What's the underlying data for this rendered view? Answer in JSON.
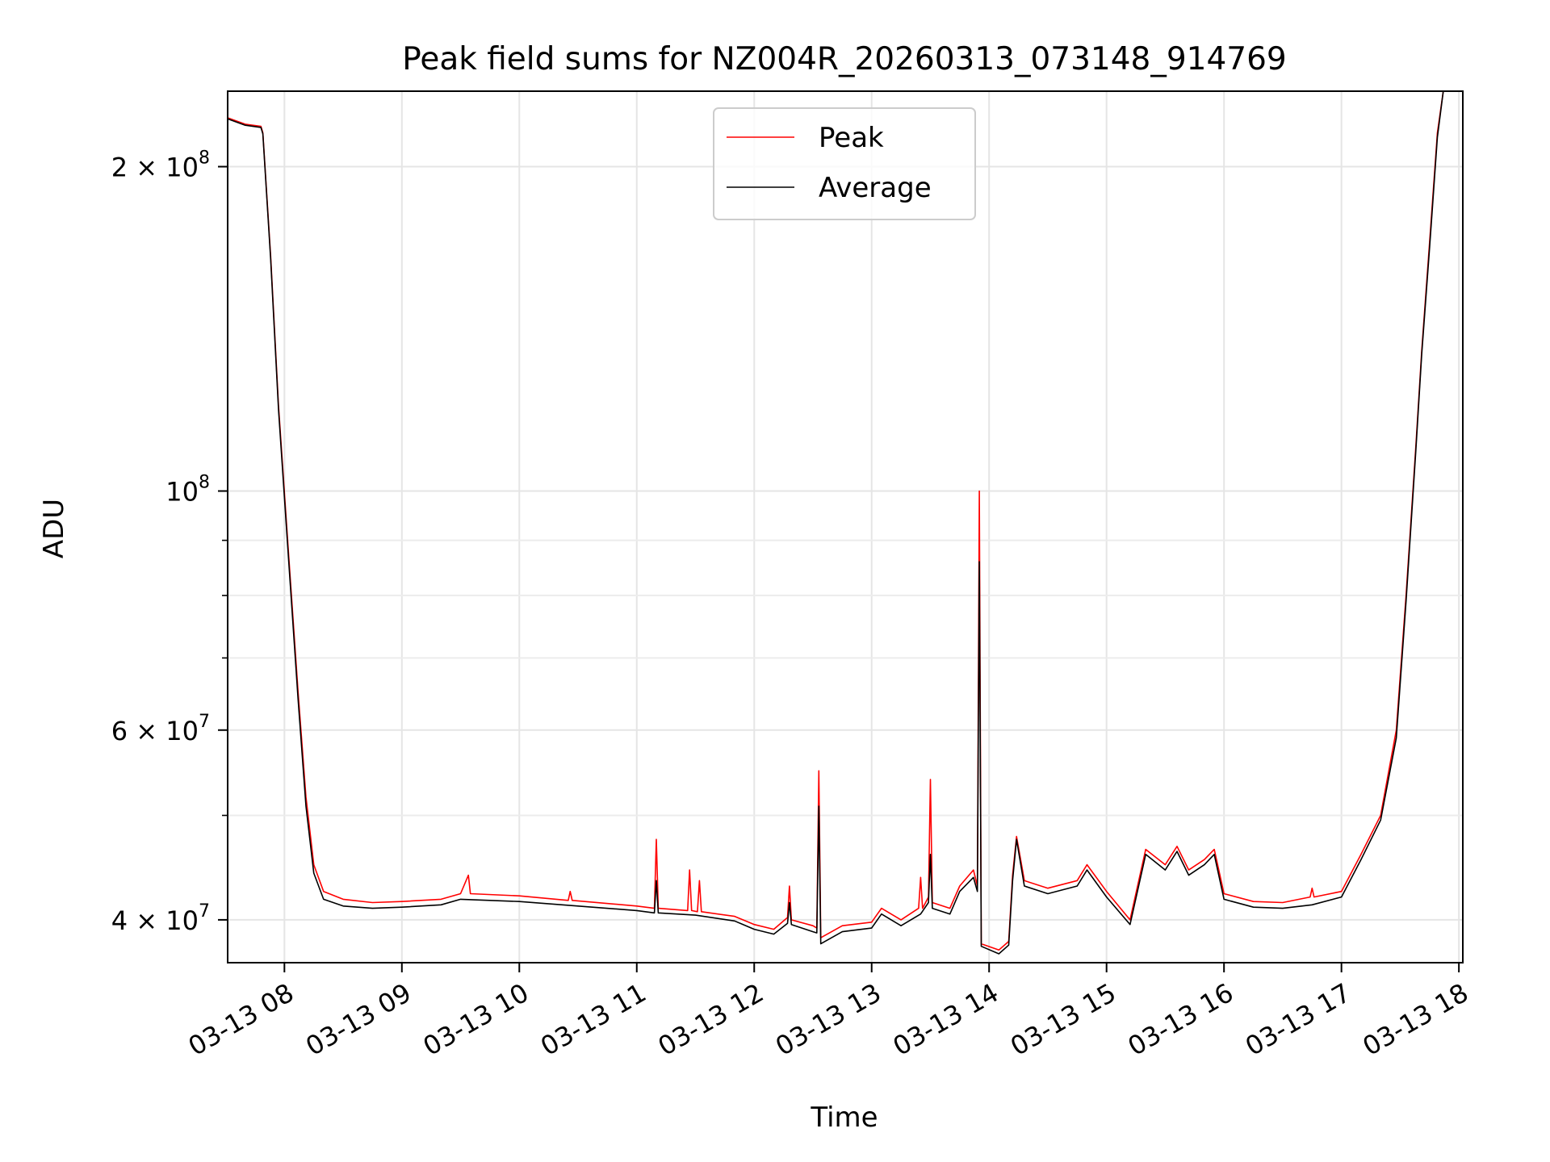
{
  "chart_data": {
    "type": "line",
    "title": "Peak field sums for NZ004R_20260313_073148_914769",
    "xlabel": "Time",
    "ylabel": "ADU",
    "y_scale": "log",
    "ylim": [
      36500000,
      235000000
    ],
    "xlim": [
      "2026-03-13 07:31",
      "2026-03-13 18:02"
    ],
    "x_ticks": [
      {
        "value": "2026-03-13 08:00",
        "label": "03-13 08"
      },
      {
        "value": "2026-03-13 09:00",
        "label": "03-13 09"
      },
      {
        "value": "2026-03-13 10:00",
        "label": "03-13 10"
      },
      {
        "value": "2026-03-13 11:00",
        "label": "03-13 11"
      },
      {
        "value": "2026-03-13 12:00",
        "label": "03-13 12"
      },
      {
        "value": "2026-03-13 13:00",
        "label": "03-13 13"
      },
      {
        "value": "2026-03-13 14:00",
        "label": "03-13 14"
      },
      {
        "value": "2026-03-13 15:00",
        "label": "03-13 15"
      },
      {
        "value": "2026-03-13 16:00",
        "label": "03-13 16"
      },
      {
        "value": "2026-03-13 17:00",
        "label": "03-13 17"
      },
      {
        "value": "2026-03-13 18:00",
        "label": "03-13 18"
      }
    ],
    "y_ticks_major": [
      {
        "value": 40000000,
        "mantissa": "4 × 10",
        "exponent": "7"
      },
      {
        "value": 60000000,
        "mantissa": "6 × 10",
        "exponent": "7"
      },
      {
        "value": 100000000,
        "mantissa": "10",
        "exponent": "8"
      },
      {
        "value": 200000000,
        "mantissa": "2 × 10",
        "exponent": "8"
      }
    ],
    "y_ticks_minor": [
      50000000,
      70000000,
      80000000,
      90000000,
      300000000
    ],
    "grid": true,
    "legend_position": "upper-center",
    "series": [
      {
        "name": "Peak",
        "color": "#ff0000",
        "points": [
          [
            "2026-03-13 07:31",
            222000000
          ],
          [
            "2026-03-13 07:40",
            219000000
          ],
          [
            "2026-03-13 07:48",
            218000000
          ],
          [
            "2026-03-13 07:49",
            215000000
          ],
          [
            "2026-03-13 07:53",
            165000000
          ],
          [
            "2026-03-13 07:57",
            120000000
          ],
          [
            "2026-03-13 08:02",
            88000000
          ],
          [
            "2026-03-13 08:07",
            65000000
          ],
          [
            "2026-03-13 08:11",
            52000000
          ],
          [
            "2026-03-13 08:15",
            45000000
          ],
          [
            "2026-03-13 08:20",
            42500000
          ],
          [
            "2026-03-13 08:30",
            41800000
          ],
          [
            "2026-03-13 08:45",
            41500000
          ],
          [
            "2026-03-13 09:00",
            41600000
          ],
          [
            "2026-03-13 09:20",
            41800000
          ],
          [
            "2026-03-13 09:30",
            42300000
          ],
          [
            "2026-03-13 09:34",
            44000000
          ],
          [
            "2026-03-13 09:35",
            42300000
          ],
          [
            "2026-03-13 10:00",
            42100000
          ],
          [
            "2026-03-13 10:25",
            41700000
          ],
          [
            "2026-03-13 10:26",
            42500000
          ],
          [
            "2026-03-13 10:27",
            41700000
          ],
          [
            "2026-03-13 11:00",
            41200000
          ],
          [
            "2026-03-13 11:09",
            41000000
          ],
          [
            "2026-03-13 11:10",
            47500000
          ],
          [
            "2026-03-13 11:11",
            41000000
          ],
          [
            "2026-03-13 11:26",
            40800000
          ],
          [
            "2026-03-13 11:27",
            44500000
          ],
          [
            "2026-03-13 11:28",
            40800000
          ],
          [
            "2026-03-13 11:31",
            40700000
          ],
          [
            "2026-03-13 11:32",
            43500000
          ],
          [
            "2026-03-13 11:33",
            40700000
          ],
          [
            "2026-03-13 11:50",
            40300000
          ],
          [
            "2026-03-13 12:00",
            39600000
          ],
          [
            "2026-03-13 12:10",
            39200000
          ],
          [
            "2026-03-13 12:17",
            40200000
          ],
          [
            "2026-03-13 12:18",
            43000000
          ],
          [
            "2026-03-13 12:19",
            40000000
          ],
          [
            "2026-03-13 12:30",
            39500000
          ],
          [
            "2026-03-13 12:32",
            39300000
          ],
          [
            "2026-03-13 12:33",
            55000000
          ],
          [
            "2026-03-13 12:34",
            38500000
          ],
          [
            "2026-03-13 12:45",
            39500000
          ],
          [
            "2026-03-13 13:00",
            39800000
          ],
          [
            "2026-03-13 13:05",
            41000000
          ],
          [
            "2026-03-13 13:15",
            40000000
          ],
          [
            "2026-03-13 13:24",
            41000000
          ],
          [
            "2026-03-13 13:25",
            43800000
          ],
          [
            "2026-03-13 13:26",
            41000000
          ],
          [
            "2026-03-13 13:29",
            42000000
          ],
          [
            "2026-03-13 13:30",
            54000000
          ],
          [
            "2026-03-13 13:31",
            41500000
          ],
          [
            "2026-03-13 13:40",
            41000000
          ],
          [
            "2026-03-13 13:45",
            43000000
          ],
          [
            "2026-03-13 13:52",
            44500000
          ],
          [
            "2026-03-13 13:54",
            43000000
          ],
          [
            "2026-03-13 13:55",
            100000000
          ],
          [
            "2026-03-13 13:56",
            38000000
          ],
          [
            "2026-03-13 14:05",
            37500000
          ],
          [
            "2026-03-13 14:10",
            38200000
          ],
          [
            "2026-03-13 14:12",
            44000000
          ],
          [
            "2026-03-13 14:14",
            47800000
          ],
          [
            "2026-03-13 14:18",
            43500000
          ],
          [
            "2026-03-13 14:30",
            42800000
          ],
          [
            "2026-03-13 14:45",
            43500000
          ],
          [
            "2026-03-13 14:50",
            45000000
          ],
          [
            "2026-03-13 15:00",
            42500000
          ],
          [
            "2026-03-13 15:12",
            40000000
          ],
          [
            "2026-03-13 15:20",
            46500000
          ],
          [
            "2026-03-13 15:30",
            45000000
          ],
          [
            "2026-03-13 15:36",
            46800000
          ],
          [
            "2026-03-13 15:42",
            44500000
          ],
          [
            "2026-03-13 15:50",
            45500000
          ],
          [
            "2026-03-13 15:55",
            46500000
          ],
          [
            "2026-03-13 16:00",
            42300000
          ],
          [
            "2026-03-13 16:15",
            41600000
          ],
          [
            "2026-03-13 16:30",
            41500000
          ],
          [
            "2026-03-13 16:44",
            42000000
          ],
          [
            "2026-03-13 16:45",
            42800000
          ],
          [
            "2026-03-13 16:46",
            42000000
          ],
          [
            "2026-03-13 17:00",
            42500000
          ],
          [
            "2026-03-13 17:10",
            46000000
          ],
          [
            "2026-03-13 17:20",
            50000000
          ],
          [
            "2026-03-13 17:28",
            60000000
          ],
          [
            "2026-03-13 17:33",
            80000000
          ],
          [
            "2026-03-13 17:38",
            110000000
          ],
          [
            "2026-03-13 17:41",
            135000000
          ],
          [
            "2026-03-13 17:45",
            170000000
          ],
          [
            "2026-03-13 17:49",
            215000000
          ],
          [
            "2026-03-13 17:52",
            235000000
          ]
        ]
      },
      {
        "name": "Average",
        "color": "#000000",
        "points": [
          [
            "2026-03-13 07:31",
            221500000
          ],
          [
            "2026-03-13 07:40",
            218500000
          ],
          [
            "2026-03-13 07:48",
            217500000
          ],
          [
            "2026-03-13 07:49",
            214500000
          ],
          [
            "2026-03-13 07:53",
            164000000
          ],
          [
            "2026-03-13 07:57",
            119000000
          ],
          [
            "2026-03-13 08:02",
            87000000
          ],
          [
            "2026-03-13 08:07",
            64000000
          ],
          [
            "2026-03-13 08:11",
            51000000
          ],
          [
            "2026-03-13 08:15",
            44200000
          ],
          [
            "2026-03-13 08:20",
            41800000
          ],
          [
            "2026-03-13 08:30",
            41200000
          ],
          [
            "2026-03-13 08:45",
            41000000
          ],
          [
            "2026-03-13 09:00",
            41100000
          ],
          [
            "2026-03-13 09:20",
            41300000
          ],
          [
            "2026-03-13 09:30",
            41800000
          ],
          [
            "2026-03-13 10:00",
            41600000
          ],
          [
            "2026-03-13 10:30",
            41200000
          ],
          [
            "2026-03-13 11:00",
            40800000
          ],
          [
            "2026-03-13 11:09",
            40600000
          ],
          [
            "2026-03-13 11:10",
            43500000
          ],
          [
            "2026-03-13 11:11",
            40600000
          ],
          [
            "2026-03-13 11:30",
            40400000
          ],
          [
            "2026-03-13 11:50",
            39900000
          ],
          [
            "2026-03-13 12:00",
            39200000
          ],
          [
            "2026-03-13 12:10",
            38800000
          ],
          [
            "2026-03-13 12:17",
            39700000
          ],
          [
            "2026-03-13 12:18",
            41500000
          ],
          [
            "2026-03-13 12:19",
            39600000
          ],
          [
            "2026-03-13 12:30",
            39000000
          ],
          [
            "2026-03-13 12:32",
            38900000
          ],
          [
            "2026-03-13 12:33",
            51000000
          ],
          [
            "2026-03-13 12:34",
            38000000
          ],
          [
            "2026-03-13 12:45",
            39000000
          ],
          [
            "2026-03-13 13:00",
            39300000
          ],
          [
            "2026-03-13 13:05",
            40500000
          ],
          [
            "2026-03-13 13:15",
            39500000
          ],
          [
            "2026-03-13 13:25",
            40500000
          ],
          [
            "2026-03-13 13:29",
            41500000
          ],
          [
            "2026-03-13 13:30",
            46000000
          ],
          [
            "2026-03-13 13:31",
            41000000
          ],
          [
            "2026-03-13 13:40",
            40500000
          ],
          [
            "2026-03-13 13:45",
            42500000
          ],
          [
            "2026-03-13 13:52",
            43800000
          ],
          [
            "2026-03-13 13:54",
            42500000
          ],
          [
            "2026-03-13 13:55",
            86000000
          ],
          [
            "2026-03-13 13:56",
            37800000
          ],
          [
            "2026-03-13 14:05",
            37200000
          ],
          [
            "2026-03-13 14:10",
            37900000
          ],
          [
            "2026-03-13 14:12",
            43500000
          ],
          [
            "2026-03-13 14:14",
            47500000
          ],
          [
            "2026-03-13 14:18",
            43000000
          ],
          [
            "2026-03-13 14:30",
            42300000
          ],
          [
            "2026-03-13 14:45",
            43000000
          ],
          [
            "2026-03-13 14:50",
            44500000
          ],
          [
            "2026-03-13 15:00",
            42000000
          ],
          [
            "2026-03-13 15:12",
            39600000
          ],
          [
            "2026-03-13 15:20",
            46000000
          ],
          [
            "2026-03-13 15:30",
            44500000
          ],
          [
            "2026-03-13 15:36",
            46300000
          ],
          [
            "2026-03-13 15:42",
            44000000
          ],
          [
            "2026-03-13 15:50",
            45000000
          ],
          [
            "2026-03-13 15:55",
            46000000
          ],
          [
            "2026-03-13 16:00",
            41800000
          ],
          [
            "2026-03-13 16:15",
            41100000
          ],
          [
            "2026-03-13 16:30",
            41000000
          ],
          [
            "2026-03-13 16:45",
            41300000
          ],
          [
            "2026-03-13 17:00",
            42000000
          ],
          [
            "2026-03-13 17:10",
            45500000
          ],
          [
            "2026-03-13 17:20",
            49500000
          ],
          [
            "2026-03-13 17:28",
            59000000
          ],
          [
            "2026-03-13 17:33",
            79000000
          ],
          [
            "2026-03-13 17:38",
            109000000
          ],
          [
            "2026-03-13 17:41",
            134000000
          ],
          [
            "2026-03-13 17:45",
            168000000
          ],
          [
            "2026-03-13 17:49",
            213000000
          ],
          [
            "2026-03-13 17:52",
            235000000
          ]
        ]
      }
    ]
  }
}
